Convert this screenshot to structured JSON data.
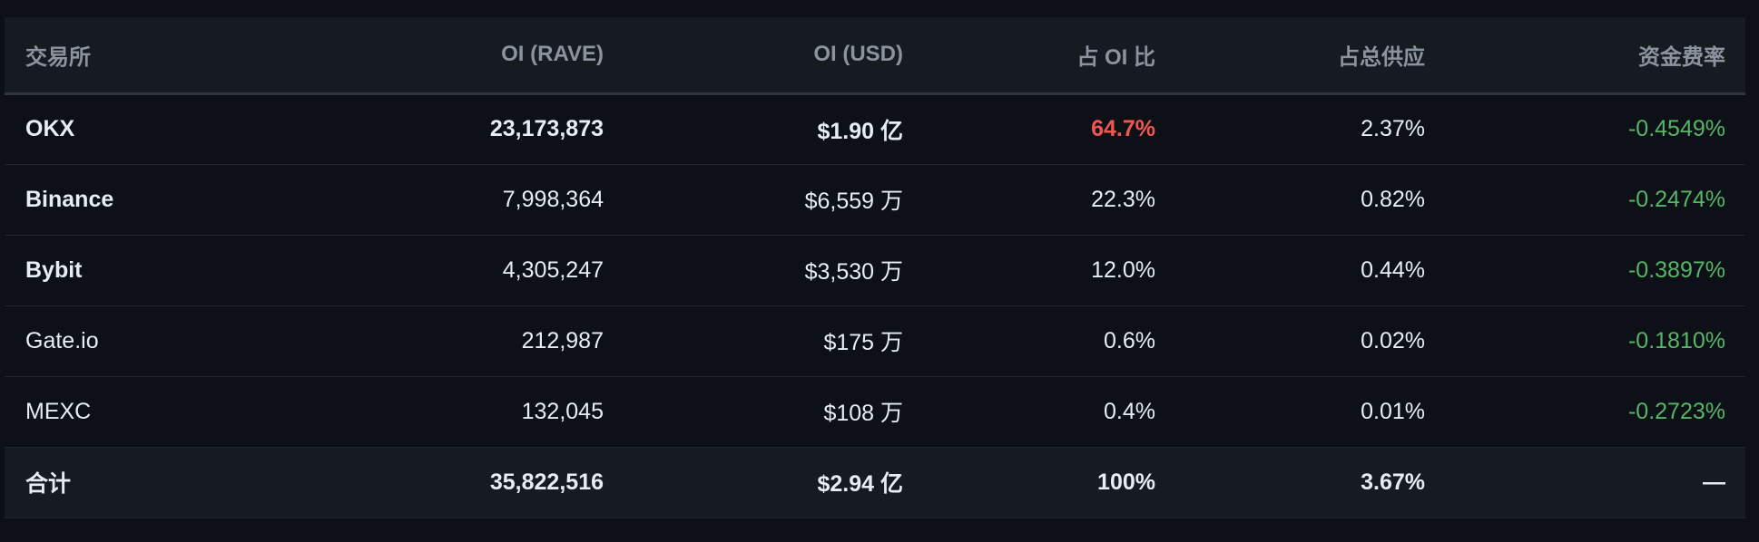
{
  "colors": {
    "background": "#0d1117",
    "header_bg": "#161b22",
    "negative_rate": "#56b665",
    "highlight_share": "#f0584f"
  },
  "headers": {
    "exchange": "交易所",
    "oi_rave": "OI (RAVE)",
    "oi_usd": "OI (USD)",
    "oi_share": "占 OI 比",
    "supply_share": "占总供应",
    "funding_rate": "资金费率"
  },
  "rows": [
    {
      "exchange": "OKX",
      "oi_rave": "23,173,873",
      "oi_usd": "$1.90 亿",
      "oi_share": "64.7%",
      "supply_share": "2.37%",
      "funding_rate": "-0.4549%"
    },
    {
      "exchange": "Binance",
      "oi_rave": "7,998,364",
      "oi_usd": "$6,559 万",
      "oi_share": "22.3%",
      "supply_share": "0.82%",
      "funding_rate": "-0.2474%"
    },
    {
      "exchange": "Bybit",
      "oi_rave": "4,305,247",
      "oi_usd": "$3,530 万",
      "oi_share": "12.0%",
      "supply_share": "0.44%",
      "funding_rate": "-0.3897%"
    },
    {
      "exchange": "Gate.io",
      "oi_rave": "212,987",
      "oi_usd": "$175 万",
      "oi_share": "0.6%",
      "supply_share": "0.02%",
      "funding_rate": "-0.1810%"
    },
    {
      "exchange": "MEXC",
      "oi_rave": "132,045",
      "oi_usd": "$108 万",
      "oi_share": "0.4%",
      "supply_share": "0.01%",
      "funding_rate": "-0.2723%"
    }
  ],
  "total": {
    "exchange": "合计",
    "oi_rave": "35,822,516",
    "oi_usd": "$2.94 亿",
    "oi_share": "100%",
    "supply_share": "3.67%",
    "funding_rate": "—"
  }
}
